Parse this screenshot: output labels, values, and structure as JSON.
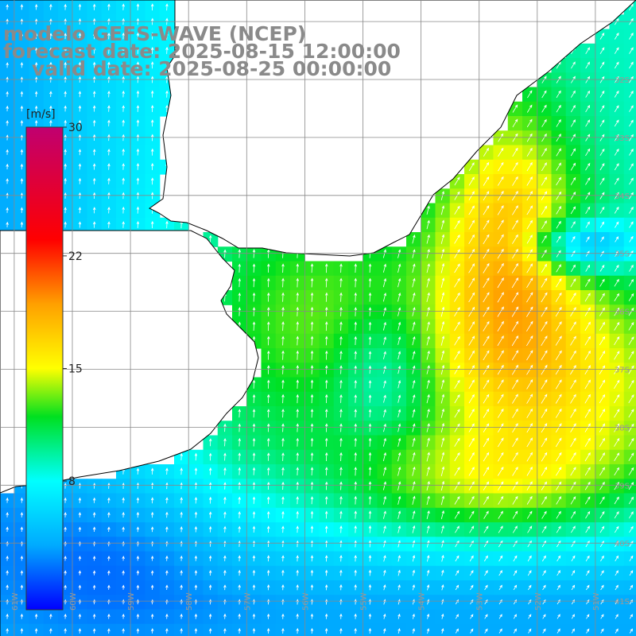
{
  "titles": {
    "model": "modelo GEFS-WAVE (NCEP)",
    "forecast": "forecast date: 2025-08-15 12:00:00",
    "valid": "valid date: 2025-08-25 00:00:00"
  },
  "colorbar": {
    "unit": "[m/s]",
    "min": 0,
    "max": 30,
    "tick_labels": [
      "30",
      "22",
      "15",
      "8"
    ],
    "tick_values": [
      30,
      22,
      15,
      8
    ],
    "colors": [
      "#0000ff",
      "#00aaff",
      "#00ffff",
      "#00e020",
      "#ffff00",
      "#ffa000",
      "#ff0000",
      "#c00070"
    ],
    "color_stops": [
      0,
      4,
      8,
      12,
      15,
      19,
      23,
      30
    ]
  },
  "map": {
    "lat_labels": [
      "32S",
      "33S",
      "34S",
      "35S",
      "36S",
      "37S",
      "38S",
      "39S",
      "40S",
      "41S"
    ],
    "lon_labels": [
      "61W",
      "60W",
      "59W",
      "58W",
      "57W",
      "56W",
      "55W",
      "54W",
      "53W",
      "52W",
      "51W"
    ],
    "land_color": "#ffffff",
    "coast_color": "#000000",
    "grid_color": "#888888",
    "arrow_color": "#ffffff"
  }
}
